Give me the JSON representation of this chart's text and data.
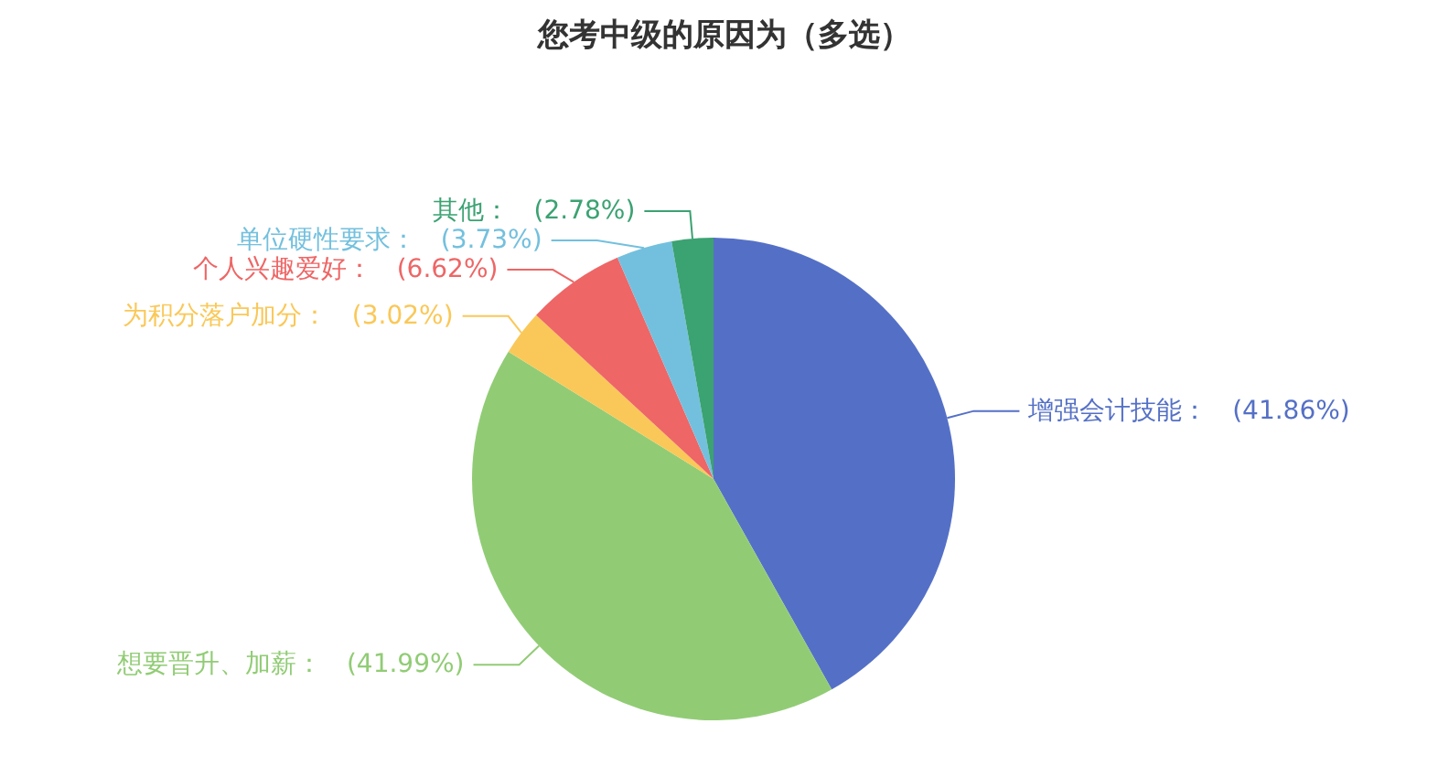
{
  "chart_data": {
    "type": "pie",
    "title": "您考中级的原因为（多选）",
    "categories": [
      "增强会计技能",
      "想要晋升、加薪",
      "为积分落户加分",
      "个人兴趣爱好",
      "单位硬性要求",
      "其他"
    ],
    "values": [
      41.86,
      41.99,
      3.02,
      6.62,
      3.73,
      2.78
    ],
    "value_labels": [
      "(41.86%)",
      "(41.99%)",
      "(3.02%)",
      "(6.62%)",
      "(3.73%)",
      "(2.78%)"
    ],
    "colors": [
      "#5470c6",
      "#91cc75",
      "#fac858",
      "#ee6666",
      "#73c0de",
      "#3ba272"
    ],
    "legend": false
  }
}
